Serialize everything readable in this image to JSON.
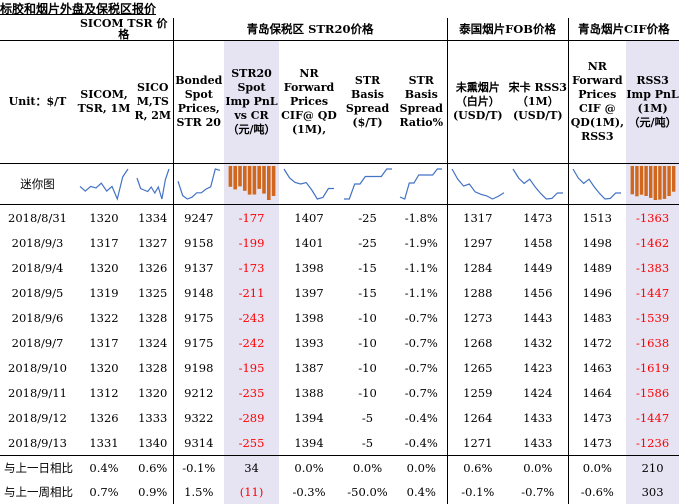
{
  "title": "标胶和烟片外盘及保税区报价",
  "groups": {
    "sicom": "SICOM TSR 价格",
    "qingdao": "青岛保税区 STR20价格",
    "thai": "泰国烟片FOB价格",
    "cif": "青岛烟片CIF价格"
  },
  "headers": {
    "unit": "Unit：$/T",
    "c1": "SICOM, TSR, 1M",
    "c2": "SICO M,TS R, 2M",
    "c3": "Bonded Spot Prices, STR 20",
    "c4": "STR20 Spot Imp PnL vs CR（元/吨）",
    "c5": "NR Forward Prices CIF@ QD (1M),",
    "c6": "STR Basis Spread ($/T)",
    "c7": "STR Basis Spread Ratio%",
    "c8": "未熏烟片（白片）(USD/T)",
    "c9": "宋卡 RSS3（1M）(USD/T)",
    "c10": "NR Forward Prices CIF @ QD(1M), RSS3",
    "c11": "RSS3 Imp PnL (1M)（元/吨）"
  },
  "spark_label": "迷你图",
  "rows": [
    {
      "date": "2018/8/31",
      "c1": "1320",
      "c2": "1334",
      "c3": "9247",
      "c4": "-177",
      "c5": "1407",
      "c6": "-25",
      "c7": "-1.8%",
      "c8": "1317",
      "c9": "1473",
      "c10": "1513",
      "c11": "-1363"
    },
    {
      "date": "2018/9/3",
      "c1": "1317",
      "c2": "1327",
      "c3": "9158",
      "c4": "-199",
      "c5": "1401",
      "c6": "-25",
      "c7": "-1.9%",
      "c8": "1297",
      "c9": "1458",
      "c10": "1498",
      "c11": "-1462"
    },
    {
      "date": "2018/9/4",
      "c1": "1320",
      "c2": "1326",
      "c3": "9137",
      "c4": "-173",
      "c5": "1398",
      "c6": "-15",
      "c7": "-1.1%",
      "c8": "1284",
      "c9": "1449",
      "c10": "1489",
      "c11": "-1383"
    },
    {
      "date": "2018/9/5",
      "c1": "1319",
      "c2": "1325",
      "c3": "9148",
      "c4": "-211",
      "c5": "1397",
      "c6": "-15",
      "c7": "-1.1%",
      "c8": "1288",
      "c9": "1456",
      "c10": "1496",
      "c11": "-1447"
    },
    {
      "date": "2018/9/6",
      "c1": "1322",
      "c2": "1328",
      "c3": "9175",
      "c4": "-243",
      "c5": "1398",
      "c6": "-10",
      "c7": "-0.7%",
      "c8": "1273",
      "c9": "1443",
      "c10": "1483",
      "c11": "-1539"
    },
    {
      "date": "2018/9/7",
      "c1": "1317",
      "c2": "1324",
      "c3": "9175",
      "c4": "-242",
      "c5": "1393",
      "c6": "-10",
      "c7": "-0.7%",
      "c8": "1268",
      "c9": "1432",
      "c10": "1472",
      "c11": "-1638"
    },
    {
      "date": "2018/9/10",
      "c1": "1320",
      "c2": "1328",
      "c3": "9198",
      "c4": "-195",
      "c5": "1387",
      "c6": "-10",
      "c7": "-0.7%",
      "c8": "1265",
      "c9": "1423",
      "c10": "1463",
      "c11": "-1619"
    },
    {
      "date": "2018/9/11",
      "c1": "1312",
      "c2": "1320",
      "c3": "9212",
      "c4": "-235",
      "c5": "1388",
      "c6": "-10",
      "c7": "-0.7%",
      "c8": "1259",
      "c9": "1424",
      "c10": "1464",
      "c11": "-1586"
    },
    {
      "date": "2018/9/12",
      "c1": "1326",
      "c2": "1333",
      "c3": "9322",
      "c4": "-289",
      "c5": "1394",
      "c6": "-5",
      "c7": "-0.4%",
      "c8": "1264",
      "c9": "1433",
      "c10": "1473",
      "c11": "-1447"
    },
    {
      "date": "2018/9/13",
      "c1": "1331",
      "c2": "1340",
      "c3": "9314",
      "c4": "-255",
      "c5": "1394",
      "c6": "-5",
      "c7": "-0.4%",
      "c8": "1271",
      "c9": "1433",
      "c10": "1473",
      "c11": "-1236"
    }
  ],
  "change_rows": [
    {
      "label": "与上一日相比",
      "c1": "0.4%",
      "c2": "0.6%",
      "c3": "-0.1%",
      "c4": "34",
      "c5": "0.0%",
      "c6": "0.0%",
      "c7": "0.0%",
      "c8": "0.6%",
      "c9": "0.0%",
      "c10": "0.0%",
      "c11": "210"
    },
    {
      "label": "与上一周相比",
      "c1": "0.7%",
      "c2": "0.9%",
      "c3": "1.5%",
      "c4": "(11)",
      "c5": "-0.3%",
      "c6": "-50.0%",
      "c7": "0.4%",
      "c8": "-0.1%",
      "c9": "-0.7%",
      "c10": "-0.6%",
      "c11": "303"
    }
  ],
  "colors": {
    "highlight": "#e6e4f3",
    "negative": "#ff0000",
    "bar_negative": "#d0671d",
    "spark_line": "#4472c4"
  }
}
